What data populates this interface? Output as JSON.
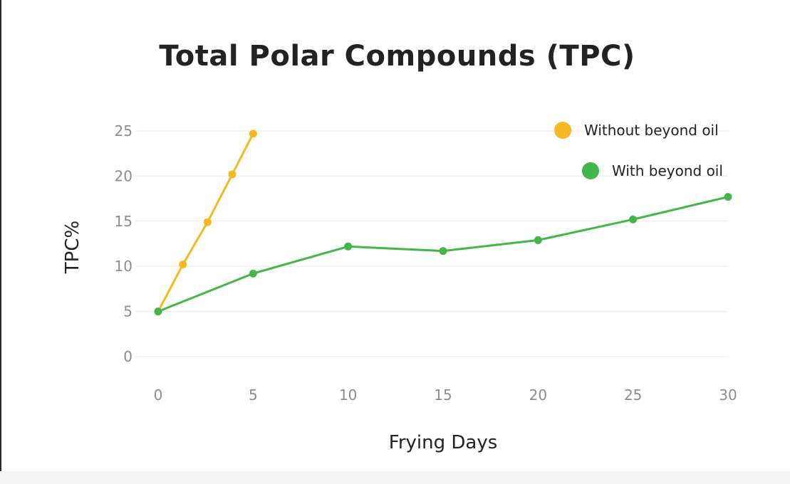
{
  "chart_data": {
    "type": "line",
    "title": "Total Polar Compounds (TPC)",
    "xlabel": "Frying Days",
    "ylabel": "TPC%",
    "xlim": [
      0,
      30
    ],
    "ylim": [
      0,
      25
    ],
    "x_ticks": [
      0,
      5,
      10,
      15,
      20,
      25,
      30
    ],
    "y_ticks": [
      0,
      5,
      10,
      15,
      20,
      25
    ],
    "grid": "horizontal",
    "legend_position": "top-right",
    "series": [
      {
        "name": "Without beyond oil",
        "color": "#F5B820",
        "x": [
          0,
          1.3,
          2.6,
          3.9,
          5
        ],
        "y": [
          5,
          10.2,
          14.9,
          20.2,
          24.7
        ]
      },
      {
        "name": "With beyond oil",
        "color": "#44B649",
        "x": [
          0,
          5,
          10,
          15,
          20,
          25,
          30
        ],
        "y": [
          5,
          9.2,
          12.2,
          11.7,
          12.9,
          15.2,
          17.7
        ]
      }
    ]
  }
}
